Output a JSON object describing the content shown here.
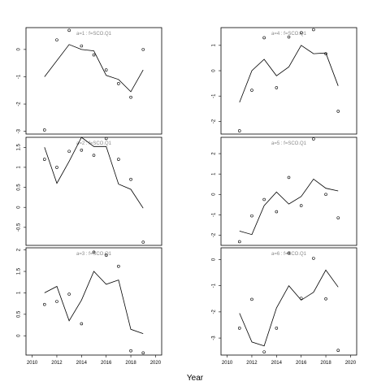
{
  "chart_data": {
    "type": "line",
    "xlabel": "Year",
    "panels": [
      {
        "title": "a=1 : f=SCO.Q1",
        "ylim": [
          -3.1,
          0.8
        ],
        "yticks": [
          0,
          -1,
          -2,
          -3
        ],
        "line": {
          "x": [
            2011,
            2013,
            2014,
            2015,
            2016,
            2017,
            2018,
            2019
          ],
          "y": [
            -1.0,
            0.18,
            0.0,
            -0.05,
            -0.95,
            -1.1,
            -1.55,
            -0.75
          ]
        },
        "points": {
          "x": [
            2011,
            2012,
            2013,
            2014,
            2015,
            2016,
            2017,
            2018,
            2019
          ],
          "y": [
            -2.95,
            0.35,
            0.7,
            0.13,
            -0.2,
            -0.75,
            -1.25,
            -1.75,
            0.0
          ]
        }
      },
      {
        "title": "a=2 : f=SCO.Q1",
        "ylim": [
          -0.95,
          1.75
        ],
        "yticks": [
          1.5,
          1.0,
          0.5,
          0.0,
          -0.5
        ],
        "line": {
          "x": [
            2011,
            2012,
            2013,
            2014,
            2015,
            2016,
            2017,
            2018,
            2019
          ],
          "y": [
            1.5,
            0.6,
            1.15,
            1.75,
            1.52,
            1.52,
            0.58,
            0.45,
            -0.02
          ]
        },
        "points": {
          "x": [
            2011,
            2012,
            2013,
            2014,
            2015,
            2016,
            2017,
            2018,
            2019
          ],
          "y": [
            1.2,
            1.0,
            1.4,
            1.43,
            1.3,
            1.72,
            1.2,
            0.7,
            -0.87
          ]
        }
      },
      {
        "title": "a=3 : f=SCO.Q1",
        "ylim": [
          -0.45,
          2.05
        ],
        "yticks": [
          2.0,
          1.5,
          1.0,
          0.5,
          0.0
        ],
        "line": {
          "x": [
            2011,
            2012,
            2013,
            2014,
            2015,
            2016,
            2017,
            2018,
            2019
          ],
          "y": [
            1.0,
            1.15,
            0.35,
            0.83,
            1.5,
            1.2,
            1.3,
            0.15,
            0.05
          ]
        },
        "points": {
          "x": [
            2011,
            2012,
            2013,
            2014,
            2015,
            2016,
            2017,
            2018,
            2019
          ],
          "y": [
            0.73,
            0.8,
            0.97,
            0.28,
            1.95,
            1.88,
            1.62,
            -0.35,
            -0.4
          ]
        }
      },
      {
        "title": "a=4 : f=SCO.Q1",
        "ylim": [
          -2.5,
          1.7
        ],
        "yticks": [
          1,
          0,
          -1,
          -2
        ],
        "line": {
          "x": [
            2011,
            2012,
            2013,
            2014,
            2015,
            2016,
            2017,
            2018,
            2019
          ],
          "y": [
            -1.25,
            0.0,
            0.45,
            -0.2,
            0.15,
            1.0,
            0.67,
            0.7,
            -0.6
          ]
        },
        "points": {
          "x": [
            2011,
            2012,
            2013,
            2014,
            2015,
            2016,
            2017,
            2018,
            2019
          ],
          "y": [
            -2.37,
            -0.77,
            1.3,
            -0.67,
            1.33,
            1.5,
            1.62,
            0.67,
            -1.6
          ]
        }
      },
      {
        "title": "a=5 : f=SCO.Q1",
        "ylim": [
          -2.5,
          2.8
        ],
        "yticks": [
          2,
          1,
          0,
          -1,
          -2
        ],
        "line": {
          "x": [
            2011,
            2012,
            2013,
            2014,
            2015,
            2016,
            2017,
            2018,
            2019
          ],
          "y": [
            -1.8,
            -1.97,
            -0.55,
            0.12,
            -0.47,
            -0.1,
            0.75,
            0.3,
            0.17
          ]
        },
        "points": {
          "x": [
            2011,
            2012,
            2013,
            2014,
            2015,
            2016,
            2017,
            2018,
            2019
          ],
          "y": [
            -2.32,
            -1.05,
            -0.25,
            -0.85,
            0.83,
            -0.55,
            2.72,
            0.0,
            -1.15
          ]
        }
      },
      {
        "title": "a=6 : f=SCO.Q1",
        "ylim": [
          -3.65,
          0.45
        ],
        "yticks": [
          0,
          -1,
          -2,
          -3
        ],
        "line": {
          "x": [
            2011,
            2012,
            2013,
            2014,
            2015,
            2016,
            2017,
            2018,
            2019
          ],
          "y": [
            -2.05,
            -3.15,
            -3.3,
            -1.85,
            -1.0,
            -1.55,
            -1.25,
            -0.4,
            -1.05
          ]
        },
        "points": {
          "x": [
            2011,
            2012,
            2013,
            2014,
            2015,
            2016,
            2017,
            2018,
            2019
          ],
          "y": [
            -2.62,
            -1.52,
            -3.53,
            -2.62,
            0.25,
            -1.48,
            0.05,
            -1.5,
            -3.47
          ]
        }
      }
    ],
    "xlim": [
      2009.5,
      2020.5
    ],
    "xticks": [
      2010,
      2012,
      2014,
      2016,
      2018,
      2020
    ]
  }
}
